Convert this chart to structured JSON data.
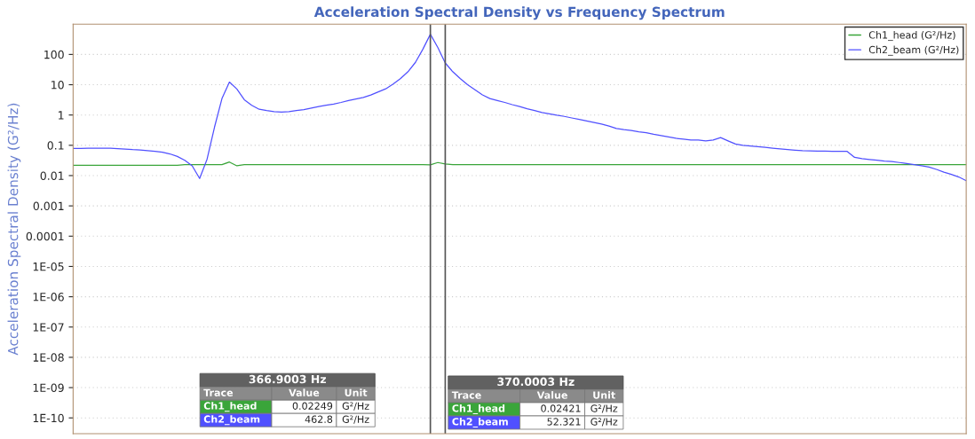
{
  "chart_data": {
    "type": "line",
    "title": "Acceleration Spectral Density vs Frequency Spectrum",
    "ylabel": "Acceleration Spectral Density (G²/Hz)",
    "log": "y",
    "grid": "y",
    "legend": "top right",
    "ylim": [
      3e-11,
      1000
    ],
    "yticks": [
      {
        "value": 1e-10,
        "label": "1E-10"
      },
      {
        "value": 1e-09,
        "label": "1E-09"
      },
      {
        "value": 1e-08,
        "label": "1E-08"
      },
      {
        "value": 1e-07,
        "label": "1E-07"
      },
      {
        "value": 1e-06,
        "label": "1E-06"
      },
      {
        "value": 1e-05,
        "label": "1E-05"
      },
      0.0001,
      0.001,
      0.01,
      0.1,
      1,
      10,
      100
    ],
    "categories": [
      null,
      null,
      null,
      null,
      null,
      null,
      null,
      null,
      null,
      null,
      null,
      null,
      null,
      null,
      null,
      null,
      null,
      null,
      null,
      null,
      null,
      null,
      null,
      null,
      null,
      null,
      null,
      null,
      null,
      null,
      null,
      null,
      null,
      null,
      null,
      null,
      null,
      null,
      null,
      null,
      null,
      null,
      null,
      null,
      null,
      null,
      null,
      null,
      null,
      null,
      null,
      null,
      null,
      null,
      null,
      null,
      null,
      null,
      null,
      null,
      null,
      null,
      null,
      null,
      null,
      null,
      null,
      null,
      null,
      null,
      null,
      null,
      null,
      null,
      null,
      null,
      null,
      null,
      null,
      null,
      null,
      null,
      null,
      null,
      null,
      null,
      null,
      null,
      null,
      null,
      null,
      null,
      null,
      null,
      null,
      null,
      null,
      null,
      null,
      null,
      null,
      null,
      null,
      null,
      null,
      null,
      null,
      null,
      null,
      null,
      null,
      null,
      null,
      null,
      null,
      null,
      null,
      null,
      null,
      null,
      null
    ],
    "series": [
      {
        "name": "Ch1_head (G²/Hz)",
        "color": "#3aa53a",
        "values": [
          0.022,
          0.022,
          0.022,
          0.022,
          0.022,
          0.022,
          0.022,
          0.022,
          0.022,
          0.022,
          0.022,
          0.022,
          0.022,
          0.022,
          0.022,
          0.023,
          0.023,
          0.023,
          0.023,
          0.023,
          0.023,
          0.028,
          0.021,
          0.023,
          0.023,
          0.023,
          0.023,
          0.023,
          0.023,
          0.023,
          0.023,
          0.023,
          0.023,
          0.023,
          0.023,
          0.023,
          0.023,
          0.023,
          0.023,
          0.023,
          0.023,
          0.023,
          0.023,
          0.023,
          0.023,
          0.023,
          0.023,
          0.023,
          0.02249,
          0.027,
          0.02421,
          0.023,
          0.023,
          0.023,
          0.023,
          0.023,
          0.023,
          0.023,
          0.023,
          0.023,
          0.023,
          0.023,
          0.023,
          0.023,
          0.023,
          0.023,
          0.023,
          0.023,
          0.023,
          0.023,
          0.023,
          0.023,
          0.023,
          0.023,
          0.023,
          0.023,
          0.023,
          0.023,
          0.023,
          0.023,
          0.023,
          0.023,
          0.023,
          0.023,
          0.023,
          0.023,
          0.023,
          0.023,
          0.023,
          0.023,
          0.023,
          0.023,
          0.023,
          0.023,
          0.023,
          0.023,
          0.023,
          0.023,
          0.023,
          0.023,
          0.023,
          0.023,
          0.023,
          0.023,
          0.023,
          0.023,
          0.023,
          0.023,
          0.023,
          0.023,
          0.023,
          0.023,
          0.023,
          0.023,
          0.023,
          0.023,
          0.023,
          0.023,
          0.023,
          0.023,
          0.023
        ]
      },
      {
        "name": "Ch2_beam (G²/Hz)",
        "color": "#5050ff",
        "values": [
          0.079,
          0.079,
          0.08,
          0.08,
          0.08,
          0.08,
          0.077,
          0.075,
          0.072,
          0.07,
          0.066,
          0.063,
          0.059,
          0.052,
          0.043,
          0.032,
          0.021,
          0.008,
          0.035,
          0.4,
          3.5,
          12.2,
          7.2,
          3.2,
          2.1,
          1.55,
          1.4,
          1.3,
          1.25,
          1.3,
          1.4,
          1.5,
          1.7,
          1.9,
          2.1,
          2.3,
          2.6,
          3.0,
          3.4,
          3.8,
          4.6,
          5.8,
          7.3,
          10.5,
          16,
          27,
          55,
          150,
          462.8,
          170,
          52.321,
          27,
          16,
          10,
          6.8,
          4.6,
          3.5,
          3.0,
          2.6,
          2.2,
          1.9,
          1.6,
          1.4,
          1.2,
          1.1,
          0.98,
          0.9,
          0.8,
          0.72,
          0.64,
          0.57,
          0.5,
          0.43,
          0.36,
          0.33,
          0.31,
          0.28,
          0.26,
          0.23,
          0.21,
          0.19,
          0.17,
          0.16,
          0.15,
          0.15,
          0.14,
          0.15,
          0.18,
          0.14,
          0.11,
          0.1,
          0.095,
          0.09,
          0.085,
          0.08,
          0.076,
          0.072,
          0.069,
          0.066,
          0.065,
          0.064,
          0.064,
          0.063,
          0.063,
          0.063,
          0.04,
          0.036,
          0.034,
          0.032,
          0.03,
          0.029,
          0.027,
          0.025,
          0.023,
          0.021,
          0.019,
          0.016,
          0.013,
          0.011,
          0.009,
          0.0068
        ]
      }
    ],
    "tick_labels": "y",
    "annotations": [
      "366.9003 Hz",
      "Trace",
      "Value",
      "Unit",
      "Ch1_head",
      "0.02249",
      "G²/Hz",
      "Ch2_beam",
      "462.8",
      "G²/Hz",
      "370.0003 Hz",
      "Trace",
      "Value",
      "Unit",
      "Ch1_head",
      "0.02421",
      "G²/Hz",
      "Ch2_beam",
      "52.321",
      "G²/Hz"
    ]
  }
}
